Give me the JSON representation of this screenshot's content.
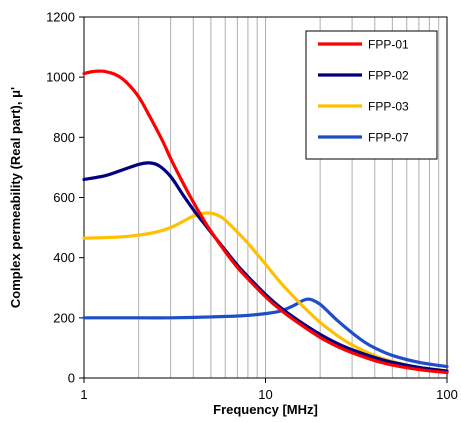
{
  "chart_data": {
    "type": "line",
    "xlabel": "Frequency [MHz]",
    "ylabel": "Complex permeability (Real part), μ'",
    "x_scale": "log",
    "xlim": [
      1,
      100
    ],
    "ylim": [
      0,
      1200
    ],
    "x_ticks": [
      "1",
      "10",
      "100"
    ],
    "y_ticks": [
      "0",
      "200",
      "400",
      "600",
      "800",
      "1000",
      "1200"
    ],
    "grid": "vertical minor lines",
    "legend_position": "top-right",
    "series": [
      {
        "name": "FPP-01",
        "color": "#ff0000",
        "x": [
          1,
          1.1,
          1.2,
          1.3,
          1.5,
          1.7,
          2,
          2.3,
          2.7,
          3,
          3.5,
          4,
          4.5,
          5,
          6,
          7,
          8,
          10,
          12,
          15,
          20,
          25,
          30,
          40,
          50,
          70,
          100
        ],
        "y": [
          1012,
          1018,
          1020,
          1019,
          1008,
          985,
          935,
          870,
          790,
          730,
          650,
          585,
          532,
          488,
          420,
          368,
          330,
          270,
          228,
          185,
          135,
          104,
          84,
          58,
          43,
          28,
          18
        ]
      },
      {
        "name": "FPP-02",
        "color": "#000080",
        "x": [
          1,
          1.3,
          1.6,
          2,
          2.3,
          2.6,
          3,
          3.5,
          4,
          4.5,
          5,
          6,
          7,
          8,
          10,
          12,
          15,
          20,
          25,
          30,
          40,
          50,
          70,
          100
        ],
        "y": [
          660,
          672,
          690,
          710,
          715,
          705,
          670,
          610,
          560,
          520,
          485,
          425,
          375,
          337,
          278,
          236,
          193,
          145,
          114,
          94,
          68,
          52,
          35,
          23
        ]
      },
      {
        "name": "FPP-03",
        "color": "#ffc000",
        "x": [
          1,
          1.5,
          2,
          2.5,
          3,
          3.5,
          4,
          4.5,
          5,
          5.5,
          6,
          7,
          8,
          10,
          12,
          15,
          20,
          25,
          30,
          40,
          50,
          70,
          100
        ],
        "y": [
          465,
          468,
          475,
          485,
          500,
          520,
          538,
          547,
          548,
          540,
          525,
          485,
          448,
          378,
          320,
          257,
          185,
          140,
          110,
          74,
          55,
          35,
          24
        ]
      },
      {
        "name": "FPP-07",
        "color": "#1f4fc8",
        "x": [
          1,
          2,
          3,
          5,
          7,
          9,
          10,
          12,
          14,
          16,
          17,
          18,
          20,
          22,
          25,
          30,
          35,
          40,
          50,
          70,
          100
        ],
        "y": [
          200,
          200,
          200,
          203,
          206,
          211,
          214,
          222,
          238,
          257,
          262,
          260,
          245,
          222,
          190,
          150,
          120,
          100,
          75,
          52,
          38
        ]
      }
    ]
  }
}
